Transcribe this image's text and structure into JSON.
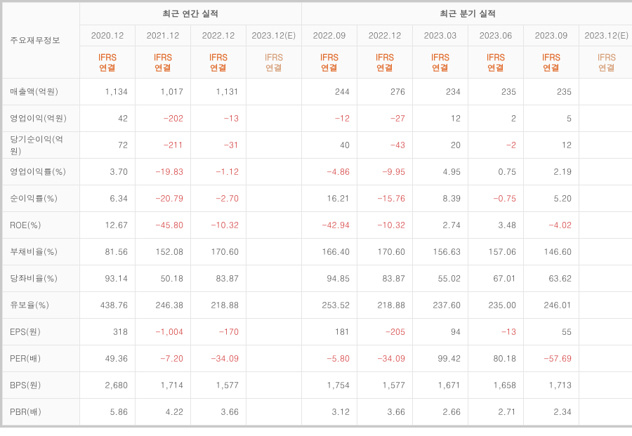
{
  "type": "table",
  "corner_label": "주요재무정보",
  "group_headers": {
    "annual": "최근 연간 실적",
    "quarterly": "최근 분기 실적"
  },
  "ifrs_line1": "IFRS",
  "ifrs_line2": "연결",
  "annual": [
    {
      "date": "2020.12",
      "est": false
    },
    {
      "date": "2021.12",
      "est": false
    },
    {
      "date": "2022.12",
      "est": false
    },
    {
      "date": "2023.12(E)",
      "est": true
    }
  ],
  "quarterly": [
    {
      "date": "2022.09",
      "est": false
    },
    {
      "date": "2022.12",
      "est": false
    },
    {
      "date": "2023.03",
      "est": false
    },
    {
      "date": "2023.06",
      "est": false
    },
    {
      "date": "2023.09",
      "est": false
    },
    {
      "date": "2023.12(E)",
      "est": true
    }
  ],
  "rows": [
    {
      "label": "매출액(억원)",
      "a": [
        "1,134",
        "1,017",
        "1,131",
        ""
      ],
      "q": [
        "244",
        "276",
        "234",
        "235",
        "235",
        ""
      ]
    },
    {
      "label": "영업이익(억원)",
      "a": [
        "42",
        "-202",
        "-13",
        ""
      ],
      "q": [
        "-12",
        "-27",
        "12",
        "2",
        "5",
        ""
      ]
    },
    {
      "label": "당기순이익(억원)",
      "a": [
        "72",
        "-211",
        "-31",
        ""
      ],
      "q": [
        "40",
        "-43",
        "20",
        "-2",
        "12",
        ""
      ]
    },
    {
      "label": "영업이익률(%)",
      "a": [
        "3.70",
        "-19.83",
        "-1.12",
        ""
      ],
      "q": [
        "-4.86",
        "-9.95",
        "4.95",
        "0.75",
        "2.19",
        ""
      ]
    },
    {
      "label": "순이익률(%)",
      "a": [
        "6.34",
        "-20.79",
        "-2.70",
        ""
      ],
      "q": [
        "16.21",
        "-15.76",
        "8.39",
        "-0.75",
        "5.20",
        ""
      ]
    },
    {
      "label": "ROE(%)",
      "a": [
        "12.67",
        "-45.80",
        "-10.32",
        ""
      ],
      "q": [
        "-42.94",
        "-10.32",
        "2.74",
        "3.48",
        "-4.02",
        ""
      ]
    },
    {
      "label": "부채비율(%)",
      "a": [
        "81.56",
        "152.08",
        "170.60",
        ""
      ],
      "q": [
        "166.40",
        "170.60",
        "156.63",
        "157.06",
        "146.60",
        ""
      ]
    },
    {
      "label": "당좌비율(%)",
      "a": [
        "93.14",
        "50.18",
        "83.87",
        ""
      ],
      "q": [
        "94.85",
        "83.87",
        "55.02",
        "67.01",
        "63.62",
        ""
      ]
    },
    {
      "label": "유보율(%)",
      "a": [
        "438.76",
        "246.38",
        "218.88",
        ""
      ],
      "q": [
        "253.52",
        "218.88",
        "237.60",
        "235.00",
        "246.01",
        ""
      ]
    },
    {
      "label": "EPS(원)",
      "a": [
        "318",
        "-1,004",
        "-170",
        ""
      ],
      "q": [
        "181",
        "-205",
        "94",
        "-13",
        "55",
        ""
      ]
    },
    {
      "label": "PER(배)",
      "a": [
        "49.36",
        "-7.20",
        "-34.09",
        ""
      ],
      "q": [
        "-5.80",
        "-34.09",
        "99.42",
        "80.18",
        "-57.69",
        ""
      ]
    },
    {
      "label": "BPS(원)",
      "a": [
        "2,680",
        "1,714",
        "1,577",
        ""
      ],
      "q": [
        "1,754",
        "1,577",
        "1,671",
        "1,658",
        "1,713",
        ""
      ]
    },
    {
      "label": "PBR(배)",
      "a": [
        "5.86",
        "4.22",
        "3.66",
        ""
      ],
      "q": [
        "3.12",
        "3.66",
        "2.66",
        "2.71",
        "2.34",
        ""
      ]
    }
  ],
  "colors": {
    "border_outer": "#c9c9c9",
    "border_inner": "#e5e5e5",
    "head_bg": "#fafafa",
    "text": "#555555",
    "negative": "#d43c3c",
    "ifrs": "#e06b2c",
    "estimate": "#9a9a9a"
  }
}
